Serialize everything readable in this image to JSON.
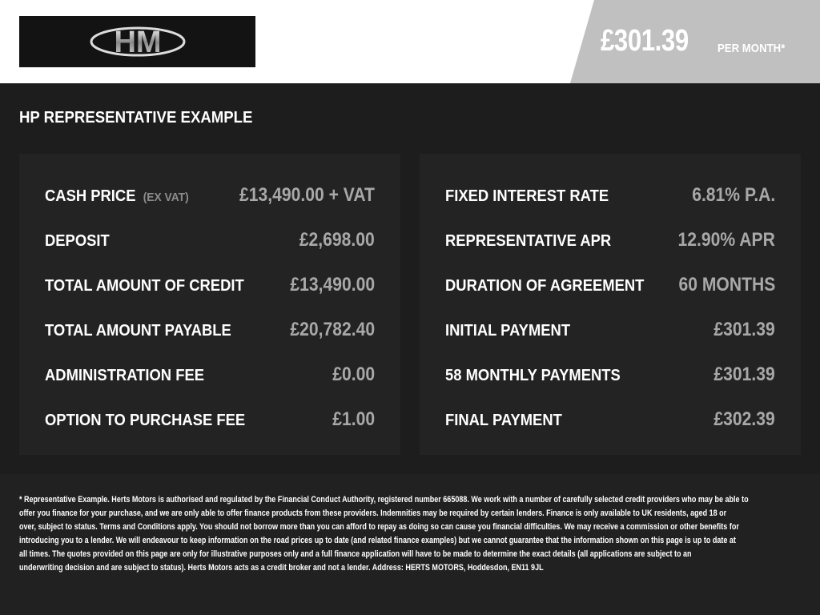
{
  "logo": {
    "text": "HM"
  },
  "banner": {
    "price": "£301.39",
    "per_month": "PER MONTH*"
  },
  "title": "HP REPRESENTATIVE EXAMPLE",
  "left_panel": [
    {
      "label": "CASH PRICE",
      "sub": "(EX VAT)",
      "value": "£13,490.00 + VAT"
    },
    {
      "label": "DEPOSIT",
      "value": "£2,698.00"
    },
    {
      "label": "TOTAL AMOUNT OF CREDIT",
      "value": "£13,490.00"
    },
    {
      "label": "TOTAL AMOUNT PAYABLE",
      "value": "£20,782.40"
    },
    {
      "label": "ADMINISTRATION FEE",
      "value": "£0.00"
    },
    {
      "label": "OPTION TO PURCHASE FEE",
      "value": "£1.00"
    }
  ],
  "right_panel": [
    {
      "label": "FIXED INTEREST RATE",
      "value": "6.81% P.A."
    },
    {
      "label": "REPRESENTATIVE APR",
      "value": "12.90% APR"
    },
    {
      "label": "DURATION OF AGREEMENT",
      "value": "60 MONTHS"
    },
    {
      "label": "INITIAL PAYMENT",
      "value": "£301.39"
    },
    {
      "label": "58 MONTHLY PAYMENTS",
      "value": "£301.39"
    },
    {
      "label": "FINAL PAYMENT",
      "value": "£302.39"
    }
  ],
  "disclaimer": [
    "* Representative Example. Herts Motors is authorised and regulated by the Financial Conduct Authority, registered number 665088. We work with a number of carefully selected credit providers who may be able to",
    "offer you finance for your purchase, and we are only able to offer finance products from these providers. Indemnities may be required by certain lenders. Finance is only available to UK residents, aged 18 or",
    "over, subject to status. Terms and Conditions apply. You should not borrow more than you can afford to repay as doing so can cause you financial difficulties. We may receive a commission or other benefits for",
    "introducing you to a lender. We will endeavour to keep information on the road prices up to date (and related finance examples) but we cannot guarantee that the information shown on this page is up to date at",
    "all times. The quotes provided on this page are only for illustrative purposes only and a full finance application will have to be made to determine the exact details (all applications are subject to an",
    "underwriting decision and are subject to status). Herts Motors acts as a credit broker and not a lender. Address: HERTS MOTORS, Hoddesdon, EN11 9JL"
  ]
}
